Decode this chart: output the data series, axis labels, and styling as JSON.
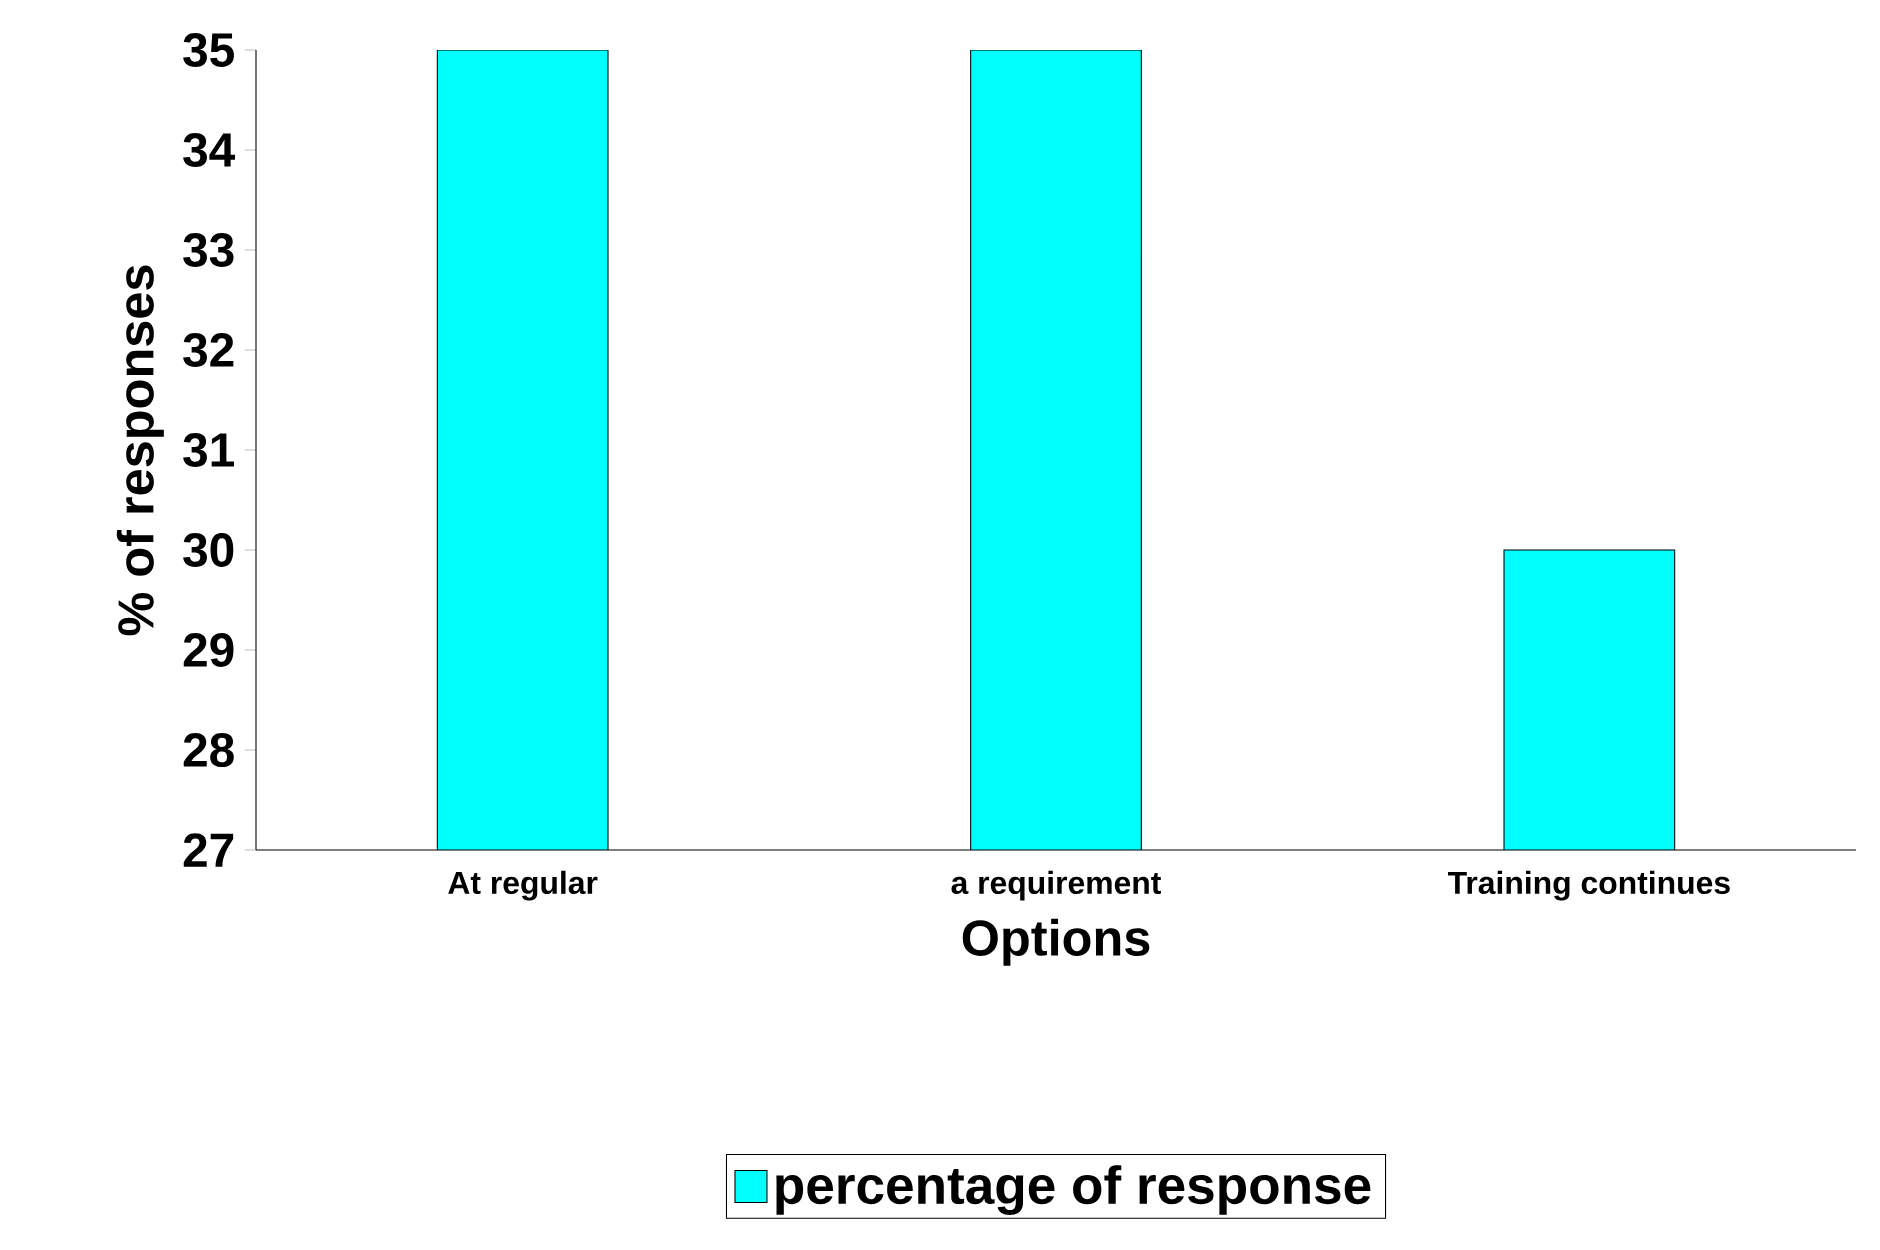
{
  "chart_data": {
    "type": "bar",
    "xlabel": "Options",
    "ylabel": "% of responses",
    "categories": [
      "At regular",
      "a requirement",
      "Training continues"
    ],
    "series": [
      {
        "name": "percentage of response",
        "color": "#00ffff",
        "values": [
          35,
          35,
          30
        ]
      }
    ],
    "ylim": [
      27,
      35
    ],
    "yticks": [
      27,
      28,
      29,
      30,
      31,
      32,
      33,
      34,
      35
    ],
    "legend": "bottom",
    "grid": false
  }
}
